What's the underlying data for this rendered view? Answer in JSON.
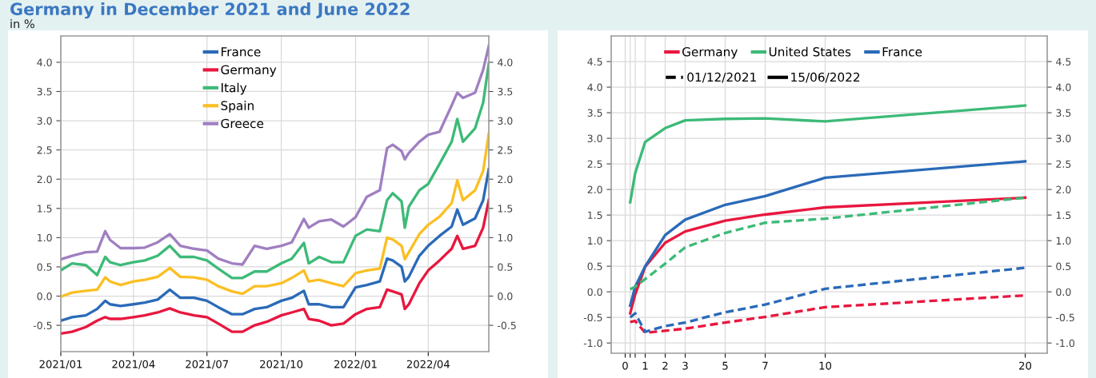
{
  "chart_data": [
    {
      "type": "line",
      "title": "Germany in December 2021 and June 2022",
      "subtitle": "in %",
      "x": [
        "2021-01-01",
        "2021-01-15",
        "2021-02-01",
        "2021-02-15",
        "2021-02-25",
        "2021-03-03",
        "2021-03-16",
        "2021-04-01",
        "2021-04-15",
        "2021-05-01",
        "2021-05-16",
        "2021-05-29",
        "2021-06-15",
        "2021-07-01",
        "2021-07-15",
        "2021-08-01",
        "2021-08-14",
        "2021-08-29",
        "2021-09-13",
        "2021-10-01",
        "2021-10-14",
        "2021-10-29",
        "2021-11-04",
        "2021-11-17",
        "2021-12-02",
        "2021-12-17",
        "2022-01-01",
        "2022-01-15",
        "2022-01-31",
        "2022-02-09",
        "2022-02-16",
        "2022-02-27",
        "2022-03-03",
        "2022-03-08",
        "2022-03-21",
        "2022-04-01",
        "2022-04-15",
        "2022-04-30",
        "2022-05-07",
        "2022-05-14",
        "2022-05-29",
        "2022-06-08",
        "2022-06-15"
      ],
      "series": [
        {
          "name": "France",
          "color": "#2a6ab8",
          "values": [
            -0.42,
            -0.36,
            -0.33,
            -0.22,
            -0.08,
            -0.14,
            -0.17,
            -0.14,
            -0.11,
            -0.06,
            0.11,
            -0.03,
            -0.03,
            -0.08,
            -0.19,
            -0.31,
            -0.31,
            -0.22,
            -0.19,
            -0.08,
            -0.03,
            0.09,
            -0.14,
            -0.14,
            -0.19,
            -0.19,
            0.15,
            0.19,
            0.25,
            0.64,
            0.61,
            0.5,
            0.25,
            0.33,
            0.69,
            0.86,
            1.03,
            1.19,
            1.48,
            1.22,
            1.33,
            1.64,
            2.17
          ]
        },
        {
          "name": "Germany",
          "color": "#e8173f",
          "values": [
            -0.64,
            -0.61,
            -0.53,
            -0.42,
            -0.36,
            -0.39,
            -0.39,
            -0.36,
            -0.33,
            -0.28,
            -0.21,
            -0.28,
            -0.33,
            -0.36,
            -0.47,
            -0.61,
            -0.61,
            -0.5,
            -0.44,
            -0.33,
            -0.28,
            -0.22,
            -0.39,
            -0.42,
            -0.5,
            -0.47,
            -0.31,
            -0.22,
            -0.19,
            0.11,
            0.08,
            0.03,
            -0.22,
            -0.14,
            0.22,
            0.44,
            0.61,
            0.81,
            1.03,
            0.81,
            0.86,
            1.17,
            1.64
          ]
        },
        {
          "name": "Italy",
          "color": "#3dba78",
          "values": [
            0.44,
            0.56,
            0.53,
            0.36,
            0.67,
            0.58,
            0.53,
            0.58,
            0.61,
            0.69,
            0.86,
            0.67,
            0.67,
            0.61,
            0.47,
            0.31,
            0.31,
            0.42,
            0.42,
            0.56,
            0.64,
            0.91,
            0.56,
            0.67,
            0.58,
            0.58,
            1.03,
            1.14,
            1.11,
            1.64,
            1.76,
            1.62,
            1.17,
            1.53,
            1.81,
            1.92,
            2.26,
            2.64,
            3.03,
            2.64,
            2.87,
            3.31,
            3.98
          ]
        },
        {
          "name": "Spain",
          "color": "#fbbf24",
          "values": [
            -0.01,
            0.06,
            0.09,
            0.11,
            0.32,
            0.25,
            0.19,
            0.25,
            0.28,
            0.33,
            0.48,
            0.33,
            0.32,
            0.28,
            0.17,
            0.08,
            0.04,
            0.17,
            0.17,
            0.22,
            0.31,
            0.44,
            0.25,
            0.28,
            0.22,
            0.17,
            0.39,
            0.44,
            0.47,
            1.0,
            0.97,
            0.86,
            0.63,
            0.75,
            1.06,
            1.22,
            1.36,
            1.59,
            1.98,
            1.64,
            1.81,
            2.14,
            2.78
          ]
        },
        {
          "name": "Greece",
          "color": "#a07fc1",
          "values": [
            0.63,
            0.69,
            0.75,
            0.76,
            1.11,
            0.96,
            0.82,
            0.82,
            0.83,
            0.92,
            1.06,
            0.86,
            0.81,
            0.78,
            0.64,
            0.56,
            0.54,
            0.86,
            0.81,
            0.86,
            0.92,
            1.32,
            1.17,
            1.28,
            1.31,
            1.19,
            1.35,
            1.7,
            1.81,
            2.53,
            2.59,
            2.48,
            2.34,
            2.45,
            2.64,
            2.76,
            2.81,
            3.26,
            3.48,
            3.39,
            3.48,
            3.87,
            4.28
          ]
        }
      ],
      "xlim": [
        "2021-01-01",
        "2022-06-15"
      ],
      "xticks": [
        {
          "value": "2021-01",
          "label": "2021/01"
        },
        {
          "value": "2021-04",
          "label": "2021/04"
        },
        {
          "value": "2021-07",
          "label": "2021/07"
        },
        {
          "value": "2021-10",
          "label": "2021/10"
        },
        {
          "value": "2022-01",
          "label": "2022/01"
        },
        {
          "value": "2022-04",
          "label": "2022/04"
        }
      ],
      "ylim": [
        -0.95,
        4.45
      ],
      "yticks": [
        {
          "value": -0.5,
          "label": "-0.5"
        },
        {
          "value": 0,
          "label": "0.0"
        },
        {
          "value": 0.5,
          "label": "0.5"
        },
        {
          "value": 1,
          "label": "1.0"
        },
        {
          "value": 1.5,
          "label": "1.5"
        },
        {
          "value": 2,
          "label": "2.0"
        },
        {
          "value": 2.5,
          "label": "2.5"
        },
        {
          "value": 3,
          "label": "3.0"
        },
        {
          "value": 3.5,
          "label": "3.5"
        },
        {
          "value": 4,
          "label": "4.0"
        }
      ],
      "y2lim": [
        -0.95,
        4.45
      ],
      "y2ticks": [
        {
          "value": -0.5,
          "label": "-0.5"
        },
        {
          "value": 0,
          "label": "0.0"
        },
        {
          "value": 0.5,
          "label": "0.5"
        },
        {
          "value": 1,
          "label": "1.0"
        },
        {
          "value": 1.5,
          "label": "1.5"
        },
        {
          "value": 2,
          "label": "2.0"
        },
        {
          "value": 2.5,
          "label": "2.5"
        },
        {
          "value": 3,
          "label": "3.0"
        },
        {
          "value": 3.5,
          "label": "3.5"
        },
        {
          "value": 4,
          "label": "4.0"
        }
      ],
      "grid": true,
      "legend": "top",
      "line_style": "solid"
    },
    {
      "type": "line",
      "x": [
        0.25,
        0.5,
        1,
        2,
        3,
        5,
        7,
        10,
        20
      ],
      "series": [
        {
          "color": "#e8173f",
          "line_style": "dashed",
          "values": [
            -0.59,
            -0.57,
            -0.8,
            -0.76,
            -0.72,
            -0.6,
            -0.49,
            -0.3,
            -0.07
          ]
        },
        {
          "color": "#3dba78",
          "line_style": "dashed",
          "values": [
            0.05,
            0.1,
            0.25,
            0.55,
            0.87,
            1.15,
            1.35,
            1.43,
            1.84
          ]
        },
        {
          "color": "#2a6ab8",
          "line_style": "dashed",
          "values": [
            -0.5,
            -0.42,
            -0.78,
            -0.67,
            -0.6,
            -0.4,
            -0.25,
            0.06,
            0.47
          ]
        },
        {
          "name": "Germany",
          "color": "#e8173f",
          "line_style": "solid",
          "values": [
            -0.42,
            -0.05,
            0.49,
            0.96,
            1.18,
            1.39,
            1.51,
            1.65,
            1.84
          ]
        },
        {
          "name": "United States",
          "color": "#3dba78",
          "line_style": "solid",
          "values": [
            1.75,
            2.32,
            2.93,
            3.2,
            3.35,
            3.38,
            3.39,
            3.33,
            3.64
          ]
        },
        {
          "name": "France",
          "color": "#2a6ab8",
          "line_style": "solid",
          "values": [
            -0.27,
            0.1,
            0.5,
            1.11,
            1.41,
            1.7,
            1.87,
            2.23,
            2.55
          ]
        }
      ],
      "annotations": [
        "01/12/2021",
        "15/06/2022"
      ],
      "xlim": [
        -0.7,
        21.1
      ],
      "xticks": [
        0,
        {
          "value": 0.25,
          "label": null
        },
        {
          "value": 0.5,
          "label": null
        },
        1,
        2,
        3,
        5,
        7,
        10,
        20
      ],
      "ylim": [
        -1.2,
        5.0
      ],
      "yticks": [
        {
          "value": -1,
          "label": "-1.0"
        },
        {
          "value": -0.5,
          "label": "-0.5"
        },
        {
          "value": 0,
          "label": "0.0"
        },
        {
          "value": 0.5,
          "label": "0.5"
        },
        {
          "value": 1,
          "label": "1.0"
        },
        {
          "value": 1.5,
          "label": "1.5"
        },
        {
          "value": 2,
          "label": "2.0"
        },
        {
          "value": 2.5,
          "label": "2.5"
        },
        {
          "value": 3,
          "label": "3.0"
        },
        {
          "value": 3.5,
          "label": "3.5"
        },
        {
          "value": 4,
          "label": "4.0"
        },
        {
          "value": 4.5,
          "label": "4.5"
        }
      ],
      "y2lim": [
        -1.2,
        5.0
      ],
      "y2ticks": [
        {
          "value": -1,
          "label": "-1.0"
        },
        {
          "value": -0.5,
          "label": "-0.5"
        },
        {
          "value": 0,
          "label": "0.0"
        },
        {
          "value": 0.5,
          "label": "0.5"
        },
        {
          "value": 1,
          "label": "1.0"
        },
        {
          "value": 1.5,
          "label": "1.5"
        },
        {
          "value": 2,
          "label": "2.0"
        },
        {
          "value": 2.5,
          "label": "2.5"
        },
        {
          "value": 3,
          "label": "3.0"
        },
        {
          "value": 3.5,
          "label": "3.5"
        },
        {
          "value": 4,
          "label": "4.0"
        },
        {
          "value": 4.5,
          "label": "4.5"
        }
      ],
      "grid": true,
      "legend": "top left"
    }
  ]
}
